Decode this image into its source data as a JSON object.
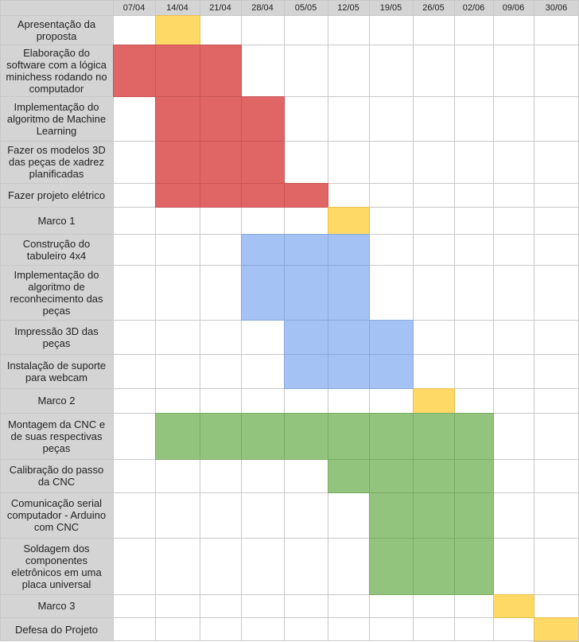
{
  "weeks": [
    "07/04",
    "14/04",
    "21/04",
    "28/04",
    "05/05",
    "12/05",
    "19/05",
    "26/05",
    "02/06",
    "09/06",
    "30/06"
  ],
  "colors": {
    "header": "#d4d4d4",
    "label": "#d4d4d4",
    "grid": "#c8c8c8",
    "yellow": "#ffd966",
    "red": "#e06666",
    "blue": "#a4c2f4",
    "green": "#93c47d"
  },
  "tasks": [
    {
      "label": "Apresentação da proposta",
      "start": 1,
      "end": 1,
      "color": "yellow"
    },
    {
      "label": "Elaboração do software com a lógica minichess rodando no computador",
      "start": 0,
      "end": 2,
      "color": "red"
    },
    {
      "label": "Implementação do algoritmo de Machine Learning",
      "start": 1,
      "end": 3,
      "color": "red"
    },
    {
      "label": "Fazer os modelos 3D das peças de xadrez planificadas",
      "start": 1,
      "end": 3,
      "color": "red"
    },
    {
      "label": "Fazer projeto elétrico",
      "start": 1,
      "end": 4,
      "color": "red"
    },
    {
      "label": "Marco 1",
      "start": 5,
      "end": 5,
      "color": "yellow"
    },
    {
      "label": "Construção do tabuleiro 4x4",
      "start": 3,
      "end": 5,
      "color": "blue"
    },
    {
      "label": "Implementação do algoritmo de reconhecimento das peças",
      "start": 3,
      "end": 5,
      "color": "blue"
    },
    {
      "label": "Impressão 3D das peças",
      "start": 4,
      "end": 6,
      "color": "blue"
    },
    {
      "label": "Instalação de suporte para webcam",
      "start": 4,
      "end": 6,
      "color": "blue"
    },
    {
      "label": "Marco 2",
      "start": 7,
      "end": 7,
      "color": "yellow"
    },
    {
      "label": "Montagem da CNC e de suas respectivas peças",
      "start": 1,
      "end": 8,
      "color": "green"
    },
    {
      "label": "Calibração do passo da CNC",
      "start": 5,
      "end": 8,
      "color": "green"
    },
    {
      "label": "Comunicação serial computador - Arduino com CNC",
      "start": 6,
      "end": 8,
      "color": "green"
    },
    {
      "label": "Soldagem dos componentes eletrônicos em uma placa universal",
      "start": 6,
      "end": 8,
      "color": "green"
    },
    {
      "label": "Marco 3",
      "start": 9,
      "end": 9,
      "color": "yellow"
    },
    {
      "label": "Defesa do Projeto",
      "start": 10,
      "end": 10,
      "color": "yellow"
    }
  ]
}
